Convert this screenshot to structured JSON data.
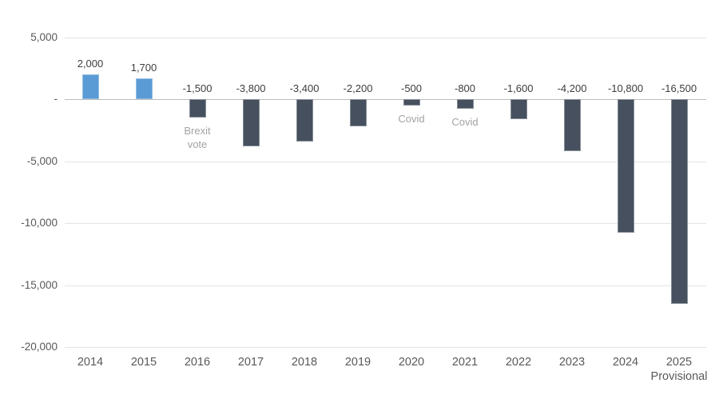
{
  "chart_data": {
    "type": "bar",
    "title": "",
    "categories": [
      "2014",
      "2015",
      "2016",
      "2017",
      "2018",
      "2019",
      "2020",
      "2021",
      "2022",
      "2023",
      "2024",
      "2025"
    ],
    "category_sublabels": [
      "",
      "",
      "",
      "",
      "",
      "",
      "",
      "",
      "",
      "",
      "",
      "Provisional"
    ],
    "values": [
      2000,
      1700,
      -1500,
      -3800,
      -3400,
      -2200,
      -500,
      -800,
      -1600,
      -4200,
      -10800,
      -16500
    ],
    "data_labels": [
      "2,000",
      "1,700",
      "-1,500",
      "-3,800",
      "-3,400",
      "-2,200",
      "-500",
      "-800",
      "-1,600",
      "-4,200",
      "-10,800",
      "-16,500"
    ],
    "y_ticks": [
      {
        "value": 5000,
        "label": "5,000"
      },
      {
        "value": 0,
        "label": "-"
      },
      {
        "value": -5000,
        "label": "-5,000"
      },
      {
        "value": -10000,
        "label": "-10,000"
      },
      {
        "value": -15000,
        "label": "-15,000"
      },
      {
        "value": -20000,
        "label": "-20,000"
      }
    ],
    "ylim": [
      -20000,
      5000
    ],
    "grid": "on",
    "legend_position": "none",
    "annotations": [
      {
        "category": "2016",
        "text": "Brexit\nvote"
      },
      {
        "category": "2020",
        "text": "Covid"
      },
      {
        "category": "2021",
        "text": "Covid"
      }
    ],
    "colors": {
      "positive_bar": "#5B9BD5",
      "negative_bar": "#46505E",
      "gridline": "#e4e4e4",
      "zero_line": "#bdbdbd",
      "axis_text": "#595959",
      "data_label_text": "#3d3d3d",
      "annotation_text": "#a3a3a3"
    }
  }
}
